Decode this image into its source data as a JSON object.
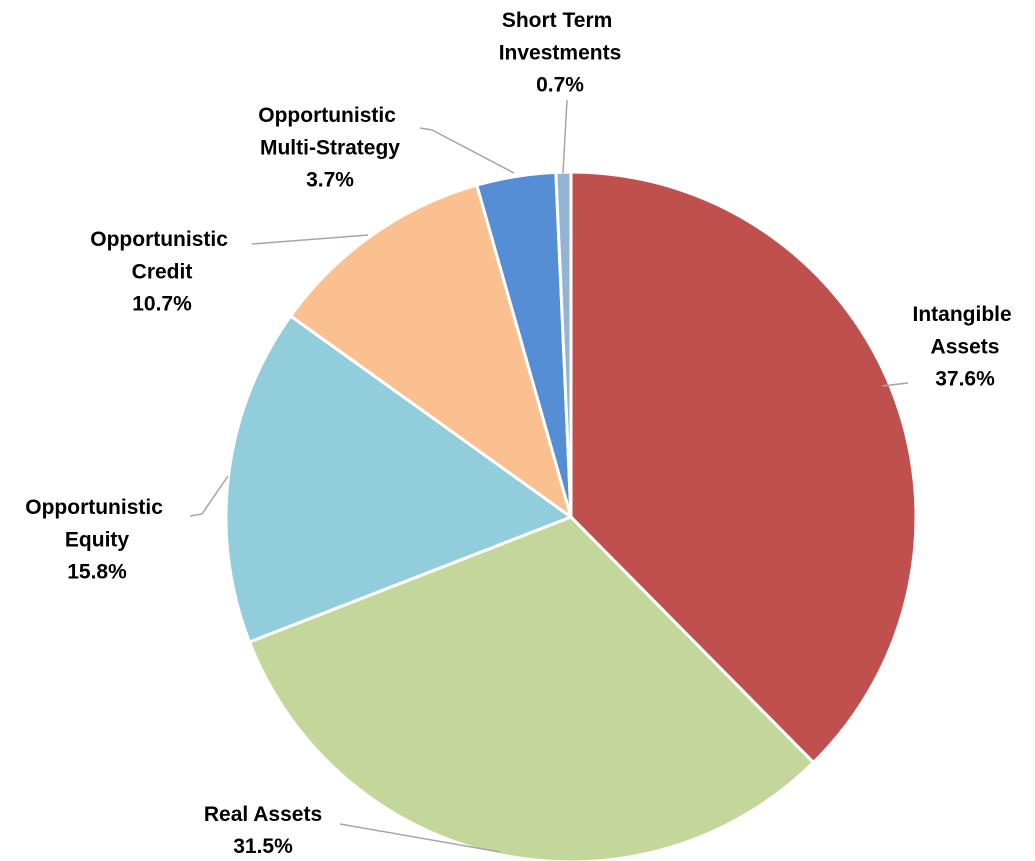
{
  "chart_data": {
    "type": "pie",
    "categories": [
      "Intangible Assets",
      "Real Assets",
      "Opportunistic Equity",
      "Opportunistic Credit",
      "Opportunistic Multi-Strategy",
      "Short Term Investments"
    ],
    "values": [
      37.6,
      31.5,
      15.8,
      10.7,
      3.7,
      0.7
    ],
    "value_labels": [
      "37.6%",
      "31.5%",
      "15.8%",
      "10.7%",
      "3.7%",
      "0.7%"
    ],
    "colors": [
      "#c0504d",
      "#c4d79b",
      "#92cddc",
      "#fac090",
      "#558ed5",
      "#95b3d7"
    ]
  }
}
